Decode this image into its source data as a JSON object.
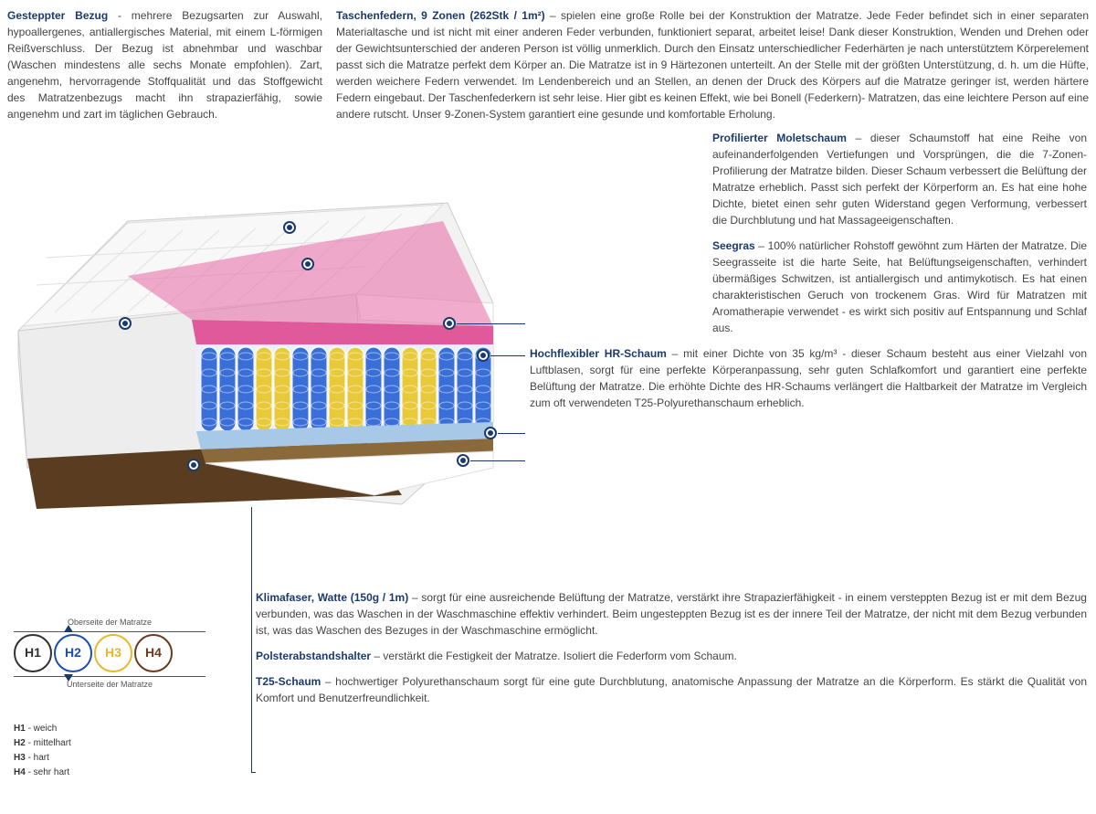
{
  "top": {
    "left": {
      "title": "Gesteppter Bezug",
      "text": " - mehrere Bezugsarten zur Auswahl, hypoallergenes, antiallergisches Material, mit einem L-förmigen Reißverschluss. Der Bezug ist abnehmbar und waschbar (Waschen mindestens alle sechs Monate empfohlen). Zart, angenehm, hervorragende Stoffqualität und das Stoffgewicht des Matratzenbezugs macht ihn strapazierfähig, sowie angenehm und zart im täglichen Gebrauch."
    },
    "right": {
      "title": "Taschenfedern, 9 Zonen (262Stk / 1m²)",
      "text": " – spielen eine große Rolle bei der Konstruktion der Matratze. Jede Feder befindet sich in einer separaten Materialtasche und ist nicht mit einer anderen Feder verbunden, funktioniert separat, arbeitet leise! Dank dieser Konstruktion, Wenden und Drehen oder der Gewichtsunterschied der anderen Person ist völlig unmerklich. Durch den Einsatz unterschiedlicher Federhärten je nach unterstütztem Körperelement passt sich die Matratze perfekt dem Körper an. Die Matratze ist in 9 Härtezonen unterteilt. An der Stelle mit der größten Unterstützung, d. h. um die Hüfte, werden weichere Federn verwendet. Im Lendenbereich und an Stellen, an denen der Druck des Körpers auf die Matratze geringer ist, werden härtere Federn eingebaut. Der Taschenfederkern ist sehr leise. Hier gibt es keinen Effekt, wie bei Bonell (Federkern)- Matratzen, das eine leichtere Person auf eine andere rutscht. Unser 9-Zonen-System garantiert eine gesunde und komfortable Erholung."
    }
  },
  "sections": {
    "molet": {
      "title": "Profilierter Moletschaum",
      "text": " – dieser Schaumstoff hat eine Reihe von aufeinanderfolgenden Vertiefungen und Vorsprüngen, die die 7-Zonen-Profilierung der Matratze bilden. Dieser Schaum verbessert die Belüftung der Matratze erheblich. Passt sich perfekt der Körperform an. Es hat eine hohe Dichte, bietet einen sehr guten Widerstand gegen Verformung, verbessert die Durchblutung und hat Massageeigenschaften."
    },
    "seegras": {
      "title": "Seegras",
      "text": " – 100% natürlicher Rohstoff gewöhnt zum Härten der Matratze. Die Seegrasseite ist die harte Seite, hat Belüftungseigenschaften, verhindert übermäßiges Schwitzen, ist antiallergisch und antimykotisch. Es hat einen charakteristischen Geruch von trockenem Gras. Wird für Matratzen mit Aromatherapie verwendet - es wirkt sich positiv auf Entspannung und Schlaf aus."
    },
    "hr": {
      "title": "Hochflexibler HR-Schaum",
      "text": " – mit einer Dichte von 35 kg/m³ - dieser Schaum besteht aus einer Vielzahl von Luftblasen, sorgt für eine perfekte Körperanpassung, sehr guten Schlafkomfort und garantiert eine perfekte Belüftung der Matratze. Die erhöhte Dichte des HR-Schaums verlängert die Haltbarkeit der Matratze im Vergleich zum oft verwendeten T25-Polyurethanschaum erheblich."
    },
    "klima": {
      "title": "Klimafaser, Watte (150g / 1m)",
      "text": " – sorgt für eine ausreichende Belüftung der Matratze, verstärkt ihre Strapazierfähigkeit - in einem versteppten Bezug ist er mit dem Bezug verbunden, was das Waschen in der Waschmaschine effektiv verhindert. Beim ungesteppten Bezug ist es der innere Teil der Matratze, der nicht mit dem Bezug verbunden ist, was das Waschen des Bezuges in der Waschmaschine ermöglicht."
    },
    "polster": {
      "title": "Polsterabstandshalter",
      "text": " – verstärkt die Festigkeit der Matratze. Isoliert die Federform vom Schaum."
    },
    "t25": {
      "title": "T25-Schaum",
      "text": " – hochwertiger Polyurethanschaum sorgt für eine gute Durchblutung, anatomische Anpassung der Matratze an die Körperform. Es stärkt die Qualität von Komfort und Benutzerfreundlichkeit."
    }
  },
  "legend": {
    "top_label": "Oberseite der Matratze",
    "bottom_label": "Unterseite der Matratze",
    "circles": [
      {
        "label": "H1",
        "color": "#333333"
      },
      {
        "label": "H2",
        "color": "#1a4fb0"
      },
      {
        "label": "H3",
        "color": "#e8b82a"
      },
      {
        "label": "H4",
        "color": "#6b3a1a"
      }
    ],
    "hardness": [
      {
        "key": "H1",
        "val": "- weich"
      },
      {
        "key": "H2",
        "val": "- mittelhart"
      },
      {
        "key": "H3",
        "val": "- hart"
      },
      {
        "key": "H4",
        "val": "- sehr hart"
      }
    ]
  },
  "mattress_svg": {
    "cover_white": "#f2f2f2",
    "cover_shadow": "#d8d8d8",
    "pink": "#e05a9b",
    "blue_spring": "#3a6fd8",
    "yellow_spring": "#e8c93a",
    "lightblue": "#a8c8e8",
    "brown": "#6b4a2a",
    "outline": "#888"
  }
}
